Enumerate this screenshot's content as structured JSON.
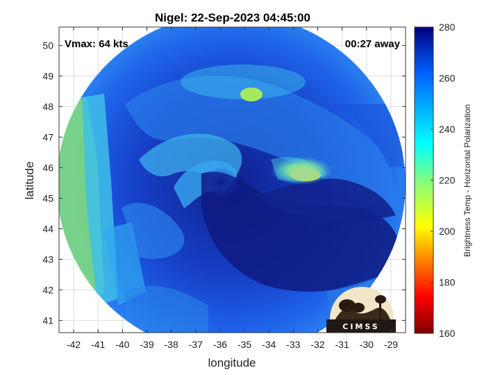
{
  "title": "Nigel: 22-Sep-2023 04:45:00",
  "vmax_label": "Vmax: 64 kts",
  "time_away_label": "00:27 away",
  "logo_text": "CIMSS",
  "x_axis": {
    "label": "longitude",
    "min": -42.6,
    "max": -28.4,
    "ticks": [
      -42,
      -41,
      -40,
      -39,
      -38,
      -37,
      -36,
      -35,
      -34,
      -33,
      -32,
      -31,
      -30,
      -29
    ]
  },
  "y_axis": {
    "label": "latitude",
    "min": 40.6,
    "max": 50.6,
    "ticks": [
      41,
      42,
      43,
      44,
      45,
      46,
      47,
      48,
      49,
      50
    ]
  },
  "colorbar": {
    "label": "Brightness Temp - Horizontal Polarization",
    "min": 160,
    "max": 280,
    "ticks": [
      160,
      180,
      200,
      220,
      240,
      260,
      280
    ]
  },
  "colors": {
    "deep_blue": "#10208c",
    "mid_blue": "#1a55e0",
    "light_blue": "#3ec0f0",
    "cyan": "#40e0d8",
    "green": "#90e070",
    "yellow": "#f0e040"
  },
  "storm_center": {
    "lon": -35.4,
    "lat": 45.1
  },
  "swath": {
    "center_lon": -35.5,
    "center_lat": 45.2
  }
}
